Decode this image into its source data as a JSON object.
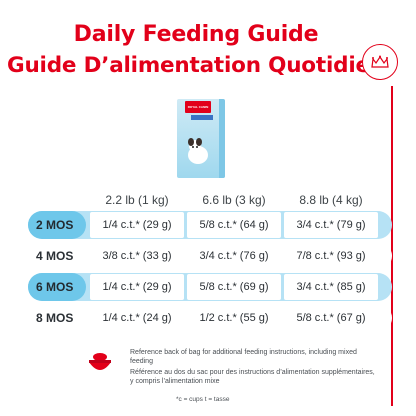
{
  "title_en": "Daily Feeding Guide",
  "title_fr": "Guide D’alimentation Quotidien",
  "product": {
    "brand": "ROYAL CANIN",
    "line": "PUPPY/CHIOT"
  },
  "columns": [
    "2.2 lb (1 kg)",
    "6.6 lb (3 kg)",
    "8.8 lb (4 kg)"
  ],
  "rows": [
    {
      "age": "2 MOS",
      "values": [
        "1/4 c.t.* (29 g)",
        "5/8 c.t.* (64 g)",
        "3/4 c.t.* (79 g)"
      ]
    },
    {
      "age": "4 MOS",
      "values": [
        "3/8 c.t.* (33 g)",
        "3/4 c.t.* (76 g)",
        "7/8 c.t.* (93 g)"
      ]
    },
    {
      "age": "6 MOS",
      "values": [
        "1/4 c.t.* (29 g)",
        "5/8 c.t.* (69 g)",
        "3/4 c.t.* (85 g)"
      ]
    },
    {
      "age": "8 MOS",
      "values": [
        "1/4 c.t.* (24 g)",
        "1/2 c.t.* (55 g)",
        "5/8 c.t.* (67 g)"
      ]
    }
  ],
  "note_en": "Reference back of bag for additional feeding instructions, including mixed feeding",
  "note_fr": "Référence au dos du sac pour des instructions d’alimentation supplémentaires, y compris l’alimentation mixe",
  "footnote": "*c = cups t = tasse",
  "colors": {
    "brand_red": "#e2001a",
    "band_blue": "#b6e2f5",
    "label_blue": "#6ec7ea"
  }
}
